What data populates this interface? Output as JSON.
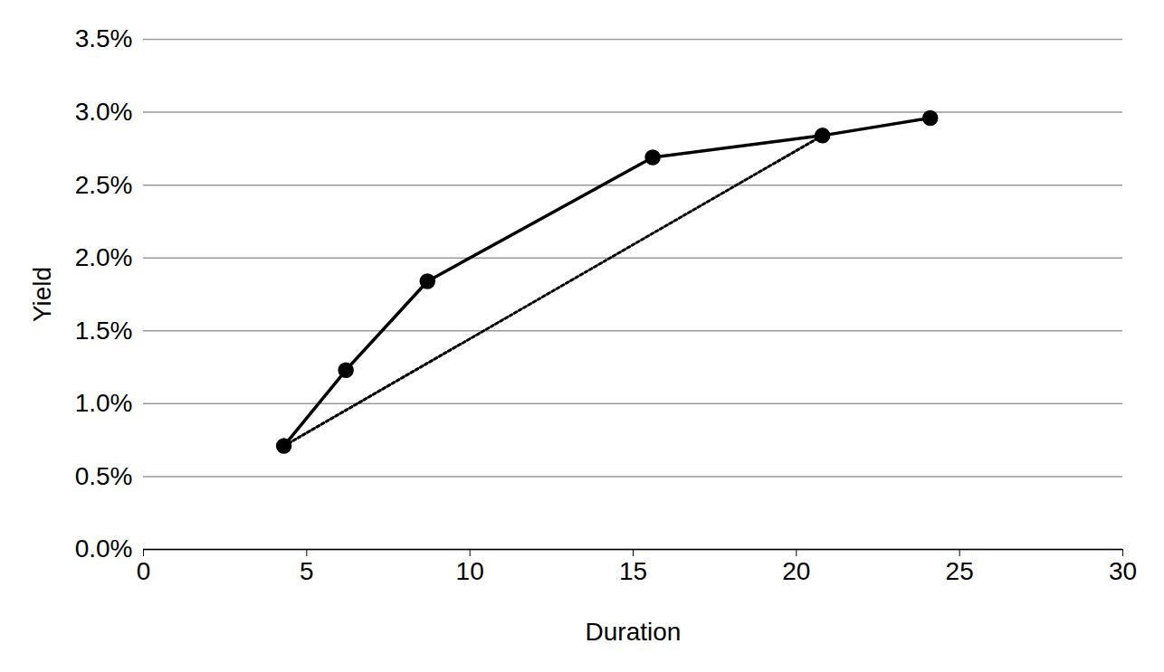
{
  "chart_data": {
    "type": "line",
    "xlabel": "Duration",
    "ylabel": "Yield",
    "xlim": [
      0,
      30
    ],
    "xticks": [
      0,
      5,
      10,
      15,
      20,
      25,
      30
    ],
    "ylim": [
      0,
      3.5
    ],
    "yticks": [
      {
        "value": 0,
        "label": "0.0%"
      },
      {
        "value": 0.5,
        "label": "0.5%"
      },
      {
        "value": 1,
        "label": "1.0%"
      },
      {
        "value": 1.5,
        "label": "1.5%"
      },
      {
        "value": 2,
        "label": "2.0%"
      },
      {
        "value": 2.5,
        "label": "2.5%"
      },
      {
        "value": 3,
        "label": "3.0%"
      },
      {
        "value": 3.5,
        "label": "3.5%"
      }
    ],
    "grid": true,
    "series": [
      {
        "x": [
          4.3,
          6.2,
          8.7,
          15.6,
          20.8,
          24.1
        ],
        "values": [
          0.71,
          1.23,
          1.84,
          2.69,
          2.84,
          2.96
        ],
        "color": "#000000",
        "line_style": "solid",
        "marker": "circle"
      },
      {
        "x": [
          4.3,
          20.8
        ],
        "values": [
          0.71,
          2.84
        ],
        "color": "#000000",
        "line_style": "dotted",
        "marker": "none"
      }
    ]
  }
}
